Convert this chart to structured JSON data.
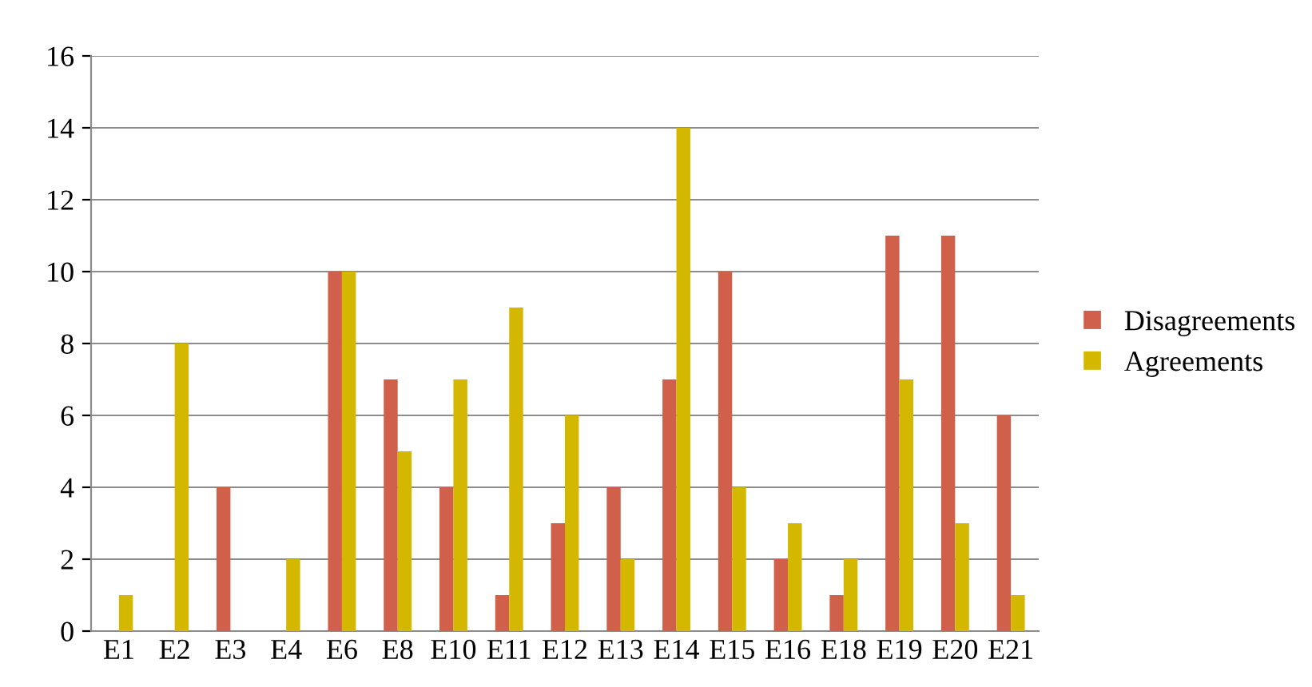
{
  "chart_data": {
    "type": "bar",
    "categories": [
      "E1",
      "E2",
      "E3",
      "E4",
      "E6",
      "E8",
      "E10",
      "E11",
      "E12",
      "E13",
      "E14",
      "E15",
      "E16",
      "E18",
      "E19",
      "E20",
      "E21"
    ],
    "series": [
      {
        "name": "Disagreements",
        "color": "#d0604a",
        "values": [
          0,
          0,
          4,
          0,
          10,
          7,
          4,
          1,
          3,
          4,
          7,
          10,
          2,
          1,
          11,
          11,
          6
        ]
      },
      {
        "name": "Agreements",
        "color": "#d4b800",
        "values": [
          1,
          8,
          0,
          2,
          10,
          5,
          7,
          9,
          6,
          2,
          14,
          4,
          3,
          2,
          7,
          3,
          1
        ]
      }
    ],
    "ylim": [
      0,
      16
    ],
    "yticks": [
      0,
      2,
      4,
      6,
      8,
      10,
      12,
      14,
      16
    ],
    "grid": "y",
    "legend": "right"
  }
}
